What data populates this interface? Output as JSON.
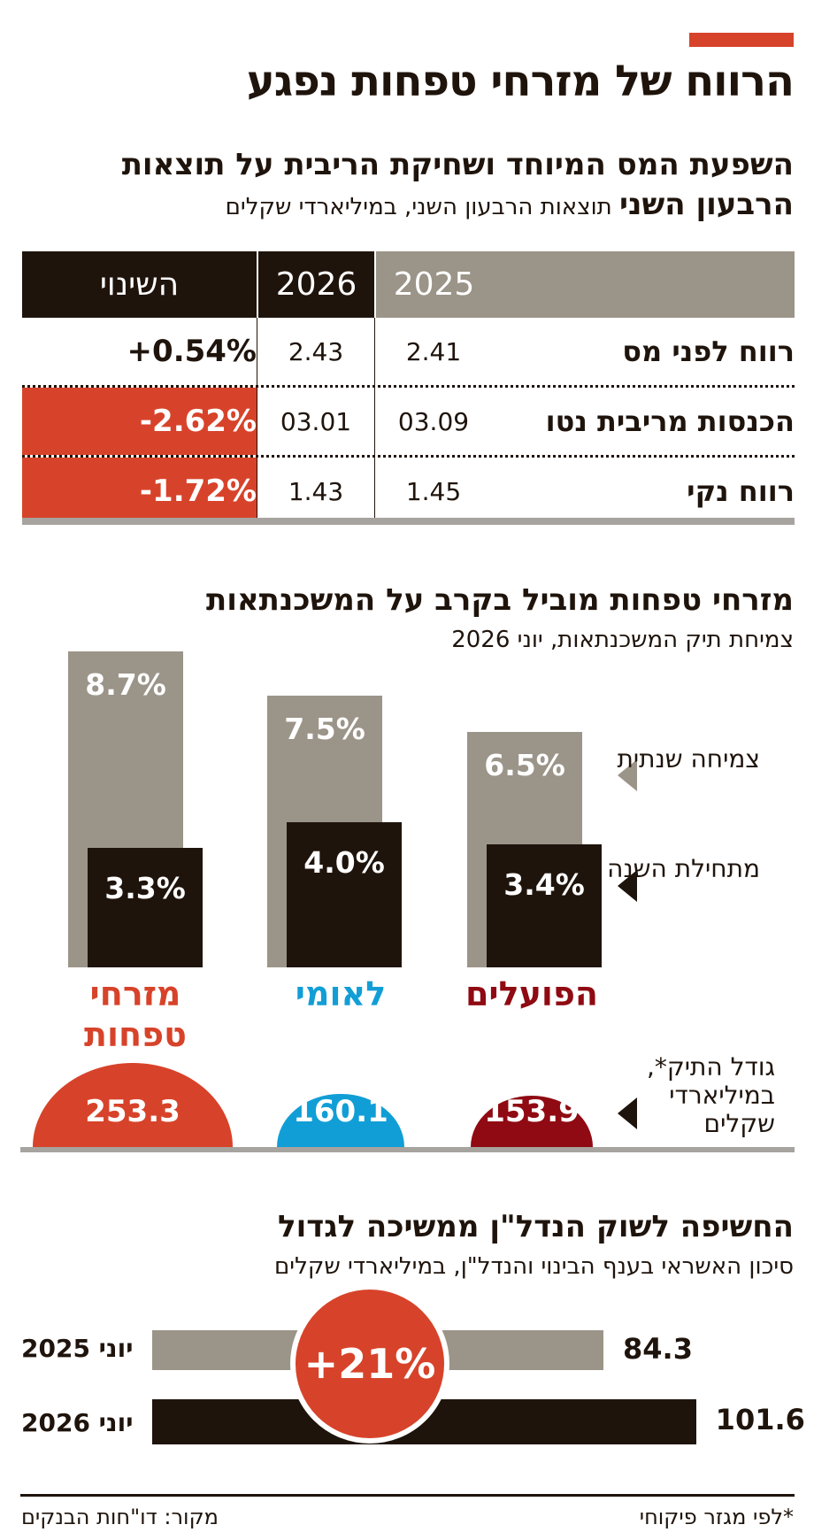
{
  "main_title": "הרווח של מזרחי טפחות נפגע",
  "colors": {
    "accent": "#d7432a",
    "dark": "#1f140c",
    "gray": "#9b9488",
    "leumi": "#119ed6",
    "poalim": "#8f0a12"
  },
  "section1": {
    "title": "השפעת המס המיוחד ושחיקת הריבית על תוצאות",
    "subtitle_bold": "הרבעון השני",
    "subtitle": "תוצאות הרבעון השני, במיליארדי שקלים"
  },
  "section2": {
    "title": "מזרחי טפחות מוביל בקרב על המשכנתאות",
    "subtitle": "צמיחת תיק המשכנתאות, יוני 2026"
  },
  "section3": {
    "title": "החשיפה לשוק הנדל\"ן ממשיכה לגדול",
    "subtitle": "סיכון האשראי בענף הבינוי והנדל\"ן, במיליארדי שקלים"
  },
  "footer": {
    "source": "מקור: דו\"חות הבנקים",
    "note": "*לפי מגזר פיקוחי"
  },
  "chart_data": [
    {
      "type": "table",
      "columns": [
        "",
        "2025",
        "2026",
        "השינוי"
      ],
      "rows": [
        {
          "label": "רווח לפני מס",
          "v2025": "2.41",
          "v2026": "2.43",
          "change": "+0.54%",
          "negative": false
        },
        {
          "label": "הכנסות מריבית נטו",
          "v2025": "03.09",
          "v2026": "03.01",
          "change": "-2.62%",
          "negative": true
        },
        {
          "label": "רווח נקי",
          "v2025": "1.45",
          "v2026": "1.43",
          "change": "-1.72%",
          "negative": true
        }
      ]
    },
    {
      "type": "bar",
      "categories": [
        "הפועלים",
        "לאומי",
        "מזרחי טפחות"
      ],
      "series": [
        {
          "name": "צמיחה שנתית",
          "values": [
            6.5,
            7.5,
            8.7
          ],
          "labels": [
            "6.5%",
            "7.5%",
            "8.7%"
          ]
        },
        {
          "name": "מתחילת השנה",
          "values": [
            3.4,
            4.0,
            3.3
          ],
          "labels": [
            "3.4%",
            "4.0%",
            "3.3%"
          ]
        }
      ],
      "portfolio_size": {
        "name": "גודל התיק*, במיליארדי שקלים",
        "values": [
          153.9,
          160.1,
          253.3
        ],
        "labels": [
          "153.9",
          "160.1",
          "253.3"
        ]
      }
    },
    {
      "type": "bar",
      "orientation": "horizontal",
      "categories": [
        "יוני 2025",
        "יוני 2026"
      ],
      "values": [
        84.3,
        101.6
      ],
      "labels": [
        "84.3",
        "101.6"
      ],
      "change_label": "+21%"
    }
  ]
}
